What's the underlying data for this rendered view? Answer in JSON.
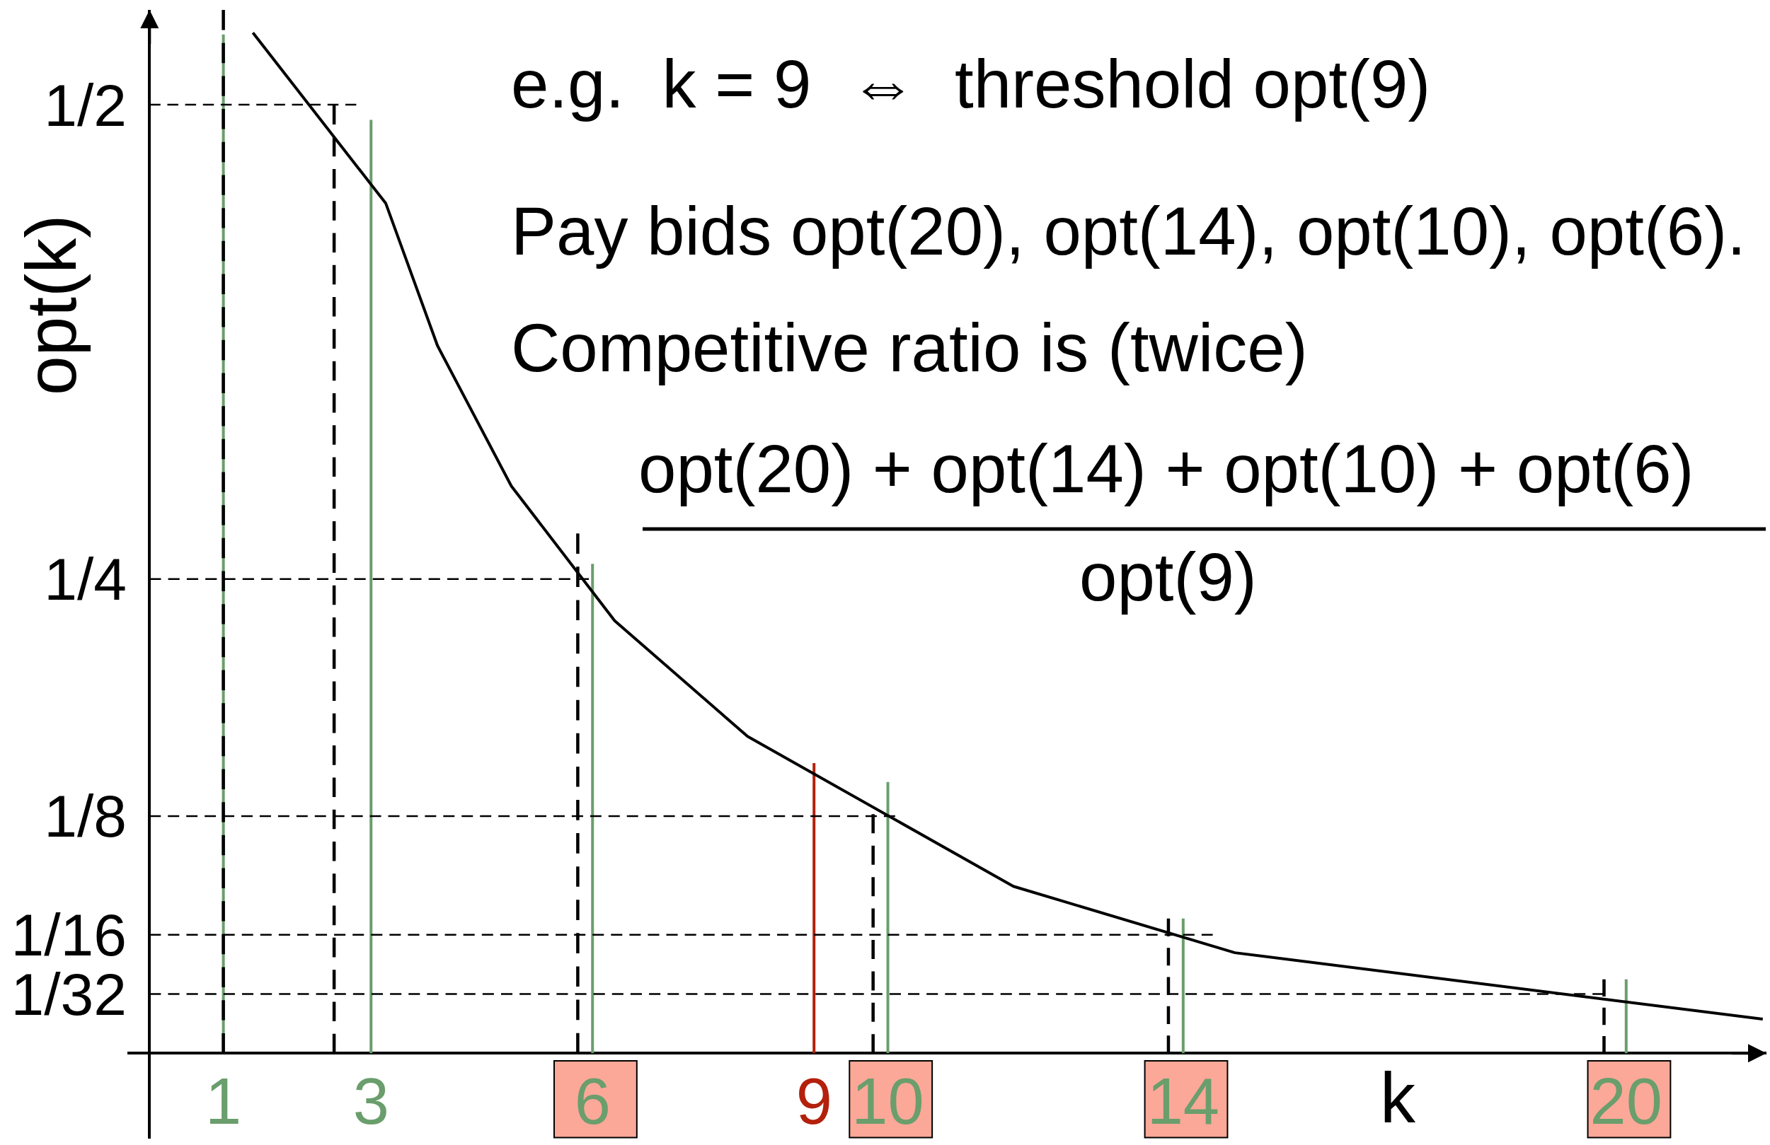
{
  "chart_data": {
    "type": "line",
    "xlabel": "k",
    "ylabel": "opt(k)",
    "annotations": [
      "e.g.  k = 9  ⇔  threshold opt(9)",
      "Pay bids opt(20), opt(14), opt(10), opt(6).",
      "Competitive ratio is (twice)",
      "opt(20) + opt(14) + opt(10) + opt(6)",
      "opt(9)"
    ],
    "xlim": [
      -0.3,
      21.9
    ],
    "ylim": [
      -0.045,
      0.55
    ],
    "xticks": [
      1,
      3,
      6,
      9,
      10,
      14,
      20
    ],
    "yticks": [
      {
        "value": 0.5,
        "label": "1/2"
      },
      {
        "value": 0.25,
        "label": "1/4"
      },
      {
        "value": 0.125,
        "label": "1/8"
      },
      {
        "value": 0.0625,
        "label": "1/16"
      },
      {
        "value": 0.03125,
        "label": "1/32"
      }
    ],
    "bands": [
      {
        "axis": "x",
        "from": 5.48,
        "to": 6.6,
        "color": "#fba898"
      },
      {
        "axis": "x",
        "from": 9.48,
        "to": 10.6,
        "color": "#fba898"
      },
      {
        "axis": "x",
        "from": 13.48,
        "to": 14.6,
        "color": "#fba898"
      },
      {
        "axis": "x",
        "from": 19.48,
        "to": 20.6,
        "color": "#fba898"
      }
    ],
    "series": [
      {
        "color": "#6a9e6c",
        "x": [
          1,
          1
        ],
        "values": [
          0,
          0.537
        ]
      },
      {
        "color": "#6a9e6c",
        "x": [
          3,
          3
        ],
        "values": [
          0,
          0.492
        ]
      },
      {
        "color": "#6a9e6c",
        "x": [
          6,
          6
        ],
        "values": [
          0,
          0.258
        ]
      },
      {
        "color": "#6a9e6c",
        "x": [
          10,
          10
        ],
        "values": [
          0,
          0.143
        ]
      },
      {
        "color": "#6a9e6c",
        "x": [
          14,
          14
        ],
        "values": [
          0,
          0.071
        ]
      },
      {
        "color": "#6a9e6c",
        "x": [
          20,
          20
        ],
        "values": [
          0,
          0.039
        ]
      },
      {
        "color": "#b3200b",
        "x": [
          9,
          9
        ],
        "values": [
          0,
          0.153
        ]
      },
      {
        "color": "#000000",
        "line_style": "dashed",
        "x": [
          1,
          1
        ],
        "values": [
          0,
          0.55
        ]
      },
      {
        "color": "#000000",
        "line_style": "dashed",
        "x": [
          2.5,
          2.5
        ],
        "values": [
          0,
          0.5
        ]
      },
      {
        "color": "#000000",
        "line_style": "dashed",
        "x": [
          5.8,
          5.8
        ],
        "values": [
          0,
          0.274
        ]
      },
      {
        "color": "#000000",
        "line_style": "dashed",
        "x": [
          9.8,
          9.8
        ],
        "values": [
          0,
          0.126
        ]
      },
      {
        "color": "#000000",
        "line_style": "dashed",
        "x": [
          13.8,
          13.8
        ],
        "values": [
          0,
          0.071
        ]
      },
      {
        "color": "#000000",
        "line_style": "dashed",
        "x": [
          19.7,
          19.7
        ],
        "values": [
          0,
          0.039
        ]
      },
      {
        "color": "#000000",
        "line_style": "dashed",
        "x": [
          0,
          2.8
        ],
        "values": [
          0.5,
          0.5
        ]
      },
      {
        "color": "#000000",
        "line_style": "dashed",
        "x": [
          0,
          5.95
        ],
        "values": [
          0.25,
          0.25
        ]
      },
      {
        "color": "#000000",
        "line_style": "dashed",
        "x": [
          0,
          10.1
        ],
        "values": [
          0.125,
          0.125
        ]
      },
      {
        "color": "#000000",
        "line_style": "dashed",
        "x": [
          0,
          14.4
        ],
        "values": [
          0.0625,
          0.0625
        ]
      },
      {
        "color": "#000000",
        "line_style": "dashed",
        "x": [
          0,
          19.7
        ],
        "values": [
          0.03125,
          0.03125
        ]
      },
      {
        "color": "#000000",
        "x": [
          1.4,
          3.2,
          3.9,
          4.9,
          6.3,
          8.1,
          11.7,
          14.7,
          21.85
        ],
        "values": [
          0.538,
          0.448,
          0.373,
          0.299,
          0.228,
          0.167,
          0.088,
          0.053,
          0.018
        ]
      }
    ]
  }
}
